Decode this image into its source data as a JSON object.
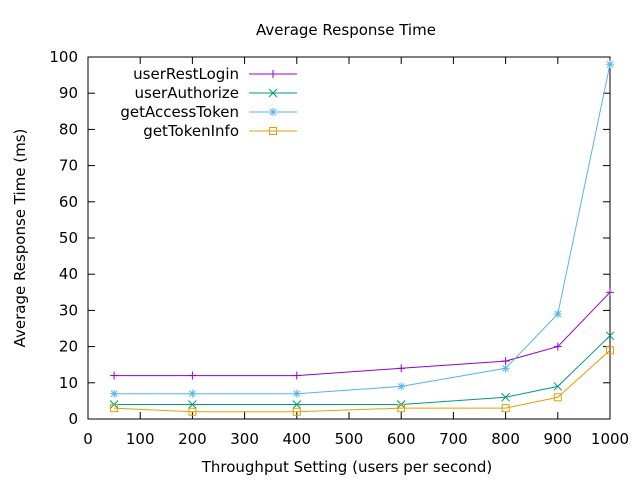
{
  "chart_data": {
    "type": "line",
    "title": "Average Response Time",
    "xlabel": "Throughput Setting (users per second)",
    "ylabel": "Average Response Time (ms)",
    "xlim": [
      0,
      1000
    ],
    "ylim": [
      0,
      100
    ],
    "xticks": [
      0,
      100,
      200,
      300,
      400,
      500,
      600,
      700,
      800,
      900,
      1000
    ],
    "yticks": [
      0,
      10,
      20,
      30,
      40,
      50,
      60,
      70,
      80,
      90,
      100
    ],
    "grid": false,
    "legend_position": "top-left",
    "x": [
      50,
      200,
      400,
      600,
      800,
      900,
      1000
    ],
    "series": [
      {
        "name": "userRestLogin",
        "color": "#9400d3",
        "marker": "plus",
        "values": [
          12,
          12,
          12,
          14,
          16,
          20,
          35
        ]
      },
      {
        "name": "userAuthorize",
        "color": "#009e73",
        "marker": "cross",
        "values": [
          4,
          4,
          4,
          4,
          6,
          9,
          23
        ]
      },
      {
        "name": "getAccessToken",
        "color": "#56b4e9",
        "marker": "star",
        "values": [
          7,
          7,
          7,
          9,
          14,
          29,
          98
        ]
      },
      {
        "name": "getTokenInfo",
        "color": "#e69f00",
        "marker": "square",
        "values": [
          3,
          2,
          2,
          3,
          3,
          6,
          19
        ]
      }
    ]
  }
}
